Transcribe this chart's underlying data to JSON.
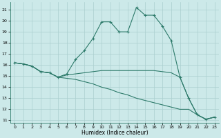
{
  "xlabel": "Humidex (Indice chaleur)",
  "bg_color": "#cce9e9",
  "line_color": "#2d7a6a",
  "grid_color": "#aacece",
  "xlim": [
    -0.5,
    23.5
  ],
  "ylim": [
    10.8,
    21.7
  ],
  "yticks": [
    11,
    12,
    13,
    14,
    15,
    16,
    17,
    18,
    19,
    20,
    21
  ],
  "xticks": [
    0,
    1,
    2,
    3,
    4,
    5,
    6,
    7,
    8,
    9,
    10,
    11,
    12,
    13,
    14,
    15,
    16,
    17,
    18,
    19,
    20,
    21,
    22,
    23
  ],
  "series": [
    [
      16.2,
      16.1,
      15.9,
      15.4,
      15.3,
      14.9,
      15.2,
      16.5,
      17.3,
      18.4,
      19.9,
      19.9,
      19.0,
      19.0,
      21.2,
      20.5,
      20.5,
      19.5,
      18.2,
      14.9,
      13.0,
      11.5,
      11.1,
      11.3
    ],
    [
      16.2,
      16.1,
      15.9,
      15.4,
      15.3,
      14.9,
      15.1,
      15.2,
      15.3,
      15.4,
      15.5,
      15.5,
      15.5,
      15.5,
      15.5,
      15.5,
      15.5,
      15.4,
      15.3,
      14.9,
      13.0,
      11.5,
      11.1,
      11.3
    ],
    [
      16.2,
      16.1,
      15.9,
      15.4,
      15.3,
      14.9,
      14.8,
      14.7,
      14.5,
      14.3,
      14.0,
      13.8,
      13.5,
      13.3,
      13.0,
      12.8,
      12.6,
      12.4,
      12.2,
      12.0,
      12.0,
      11.5,
      11.1,
      11.3
    ]
  ],
  "markers": [
    true,
    false,
    false
  ]
}
